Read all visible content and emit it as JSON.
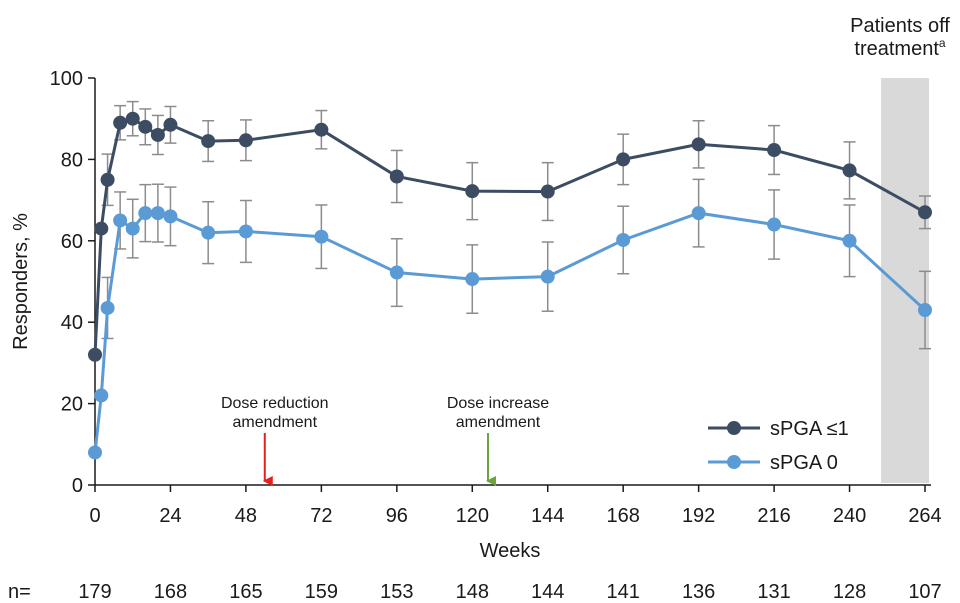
{
  "chart_data": {
    "type": "line",
    "xlabel": "Weeks",
    "ylabel": "Responders, %",
    "xlim": [
      0,
      264
    ],
    "ylim": [
      0,
      100
    ],
    "x_ticks": [
      0,
      24,
      48,
      72,
      96,
      120,
      144,
      168,
      192,
      216,
      240,
      264
    ],
    "y_ticks": [
      0,
      20,
      40,
      60,
      80,
      100
    ],
    "grid": false,
    "legend_position": "bottom-right",
    "shaded_region": {
      "label_line1": "Patients off",
      "label_line2": "treatment",
      "label_superscript": "a",
      "x_range": [
        250,
        264
      ]
    },
    "annotations": [
      {
        "line1": "Dose reduction",
        "line2": "amendment",
        "x": 54,
        "color": "#e8201c"
      },
      {
        "line1": "Dose increase",
        "line2": "amendment",
        "x": 125,
        "color": "#6ca33b"
      }
    ],
    "series": [
      {
        "name": "sPGA ≤1",
        "color": "#3c4d63",
        "points": [
          {
            "x": 0,
            "y": 32,
            "err": 0
          },
          {
            "x": 2,
            "y": 63,
            "err": 0
          },
          {
            "x": 4,
            "y": 75,
            "err": 6.3
          },
          {
            "x": 8,
            "y": 89,
            "err": 4.2
          },
          {
            "x": 12,
            "y": 90,
            "err": 4.2
          },
          {
            "x": 16,
            "y": 88,
            "err": 4.4
          },
          {
            "x": 20,
            "y": 86,
            "err": 4.8
          },
          {
            "x": 24,
            "y": 88.5,
            "err": 4.5
          },
          {
            "x": 36,
            "y": 84.5,
            "err": 5
          },
          {
            "x": 48,
            "y": 84.7,
            "err": 5
          },
          {
            "x": 72,
            "y": 87.3,
            "err": 4.7
          },
          {
            "x": 96,
            "y": 75.8,
            "err": 6.4
          },
          {
            "x": 120,
            "y": 72.2,
            "err": 7
          },
          {
            "x": 144,
            "y": 72.1,
            "err": 7.1
          },
          {
            "x": 168,
            "y": 80,
            "err": 6.2
          },
          {
            "x": 192,
            "y": 83.7,
            "err": 5.8
          },
          {
            "x": 216,
            "y": 82.3,
            "err": 6
          },
          {
            "x": 240,
            "y": 77.3,
            "err": 7
          },
          {
            "x": 264,
            "y": 67,
            "err": 4
          }
        ]
      },
      {
        "name": "sPGA 0",
        "color": "#5b9bd5",
        "points": [
          {
            "x": 0,
            "y": 8,
            "err": 0
          },
          {
            "x": 2,
            "y": 22,
            "err": 0
          },
          {
            "x": 4,
            "y": 43.5,
            "err": 7.5
          },
          {
            "x": 8,
            "y": 65,
            "err": 7
          },
          {
            "x": 12,
            "y": 63,
            "err": 7.2
          },
          {
            "x": 16,
            "y": 66.8,
            "err": 7
          },
          {
            "x": 20,
            "y": 66.8,
            "err": 7.1
          },
          {
            "x": 24,
            "y": 66,
            "err": 7.2
          },
          {
            "x": 36,
            "y": 62,
            "err": 7.6
          },
          {
            "x": 48,
            "y": 62.3,
            "err": 7.6
          },
          {
            "x": 72,
            "y": 61,
            "err": 7.8
          },
          {
            "x": 96,
            "y": 52.2,
            "err": 8.3
          },
          {
            "x": 120,
            "y": 50.6,
            "err": 8.4
          },
          {
            "x": 144,
            "y": 51.2,
            "err": 8.5
          },
          {
            "x": 168,
            "y": 60.2,
            "err": 8.3
          },
          {
            "x": 192,
            "y": 66.8,
            "err": 8.3
          },
          {
            "x": 216,
            "y": 64,
            "err": 8.5
          },
          {
            "x": 240,
            "y": 60,
            "err": 8.8
          },
          {
            "x": 264,
            "y": 43,
            "err": 9.5
          }
        ]
      }
    ],
    "n_at_risk": {
      "label": "n=",
      "values": [
        {
          "x": 0,
          "n": "179"
        },
        {
          "x": 24,
          "n": "168"
        },
        {
          "x": 48,
          "n": "165"
        },
        {
          "x": 72,
          "n": "159"
        },
        {
          "x": 96,
          "n": "153"
        },
        {
          "x": 120,
          "n": "148"
        },
        {
          "x": 144,
          "n": "144"
        },
        {
          "x": 168,
          "n": "141"
        },
        {
          "x": 192,
          "n": "136"
        },
        {
          "x": 216,
          "n": "131"
        },
        {
          "x": 240,
          "n": "128"
        },
        {
          "x": 264,
          "n": "107"
        }
      ]
    }
  }
}
